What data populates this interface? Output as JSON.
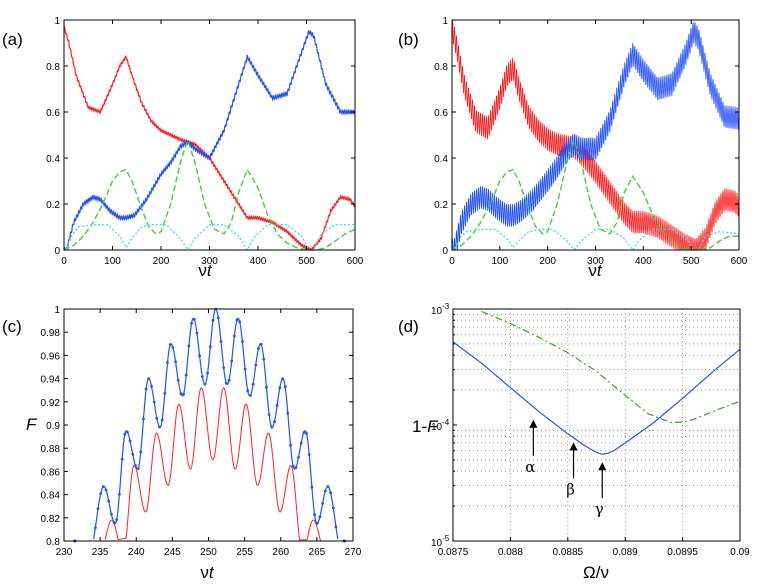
{
  "chart_data": [
    {
      "panel": "(a)",
      "type": "line",
      "xlabel_prefix": "ν",
      "xlabel_var": "t",
      "xlim": [
        0,
        600
      ],
      "ylim": [
        0,
        1
      ],
      "xticks": [
        "0",
        "100",
        "200",
        "300",
        "400",
        "500",
        "600"
      ],
      "yticks": [
        "0",
        "0.2",
        "0.4",
        "0.6",
        "0.8",
        "1"
      ],
      "series": [
        {
          "color": "#ff2020",
          "style": "solid",
          "oscillation": 0.006,
          "x": [
            0,
            10,
            25,
            50,
            75,
            100,
            115,
            128,
            140,
            160,
            180,
            200,
            220,
            240,
            255,
            270,
            300,
            330,
            360,
            378,
            400,
            430,
            460,
            490,
            510,
            530,
            550,
            570,
            590,
            600
          ],
          "y": [
            0.97,
            0.9,
            0.76,
            0.62,
            0.6,
            0.72,
            0.8,
            0.84,
            0.76,
            0.64,
            0.56,
            0.52,
            0.5,
            0.48,
            0.47,
            0.46,
            0.4,
            0.3,
            0.2,
            0.14,
            0.14,
            0.12,
            0.08,
            0.02,
            0.0,
            0.05,
            0.17,
            0.23,
            0.22,
            0.19
          ]
        },
        {
          "color": "#2050ff",
          "style": "solid",
          "oscillation": 0.008,
          "x": [
            0,
            5,
            20,
            40,
            60,
            75,
            95,
            115,
            128,
            145,
            170,
            200,
            220,
            240,
            255,
            270,
            300,
            330,
            360,
            378,
            400,
            430,
            460,
            490,
            505,
            515,
            540,
            570,
            600
          ],
          "y": [
            0.0,
            0.0,
            0.12,
            0.2,
            0.23,
            0.22,
            0.17,
            0.14,
            0.14,
            0.15,
            0.22,
            0.33,
            0.38,
            0.45,
            0.47,
            0.44,
            0.4,
            0.52,
            0.72,
            0.84,
            0.76,
            0.66,
            0.68,
            0.86,
            0.95,
            0.93,
            0.72,
            0.6,
            0.6
          ]
        },
        {
          "color": "#40d030",
          "style": "dash",
          "oscillation": 0,
          "x": [
            0,
            20,
            40,
            60,
            80,
            100,
            115,
            128,
            140,
            160,
            175,
            190,
            200,
            220,
            240,
            255,
            270,
            290,
            310,
            330,
            345,
            360,
            378,
            400,
            420,
            440,
            460,
            480,
            500,
            510,
            520,
            540,
            560,
            580,
            600
          ],
          "y": [
            0.0,
            0.02,
            0.06,
            0.12,
            0.2,
            0.3,
            0.34,
            0.35,
            0.3,
            0.18,
            0.1,
            0.07,
            0.08,
            0.2,
            0.38,
            0.48,
            0.38,
            0.2,
            0.09,
            0.07,
            0.12,
            0.25,
            0.35,
            0.27,
            0.15,
            0.07,
            0.03,
            0.01,
            0.0,
            0.0,
            0.0,
            0.01,
            0.04,
            0.07,
            0.09
          ]
        },
        {
          "color": "#40e0e0",
          "style": "dot",
          "oscillation": 0,
          "x": [
            0,
            5,
            15,
            30,
            60,
            90,
            115,
            128,
            140,
            160,
            180,
            210,
            240,
            255,
            270,
            300,
            330,
            360,
            378,
            390,
            420,
            460,
            490,
            505,
            510,
            515,
            530,
            560,
            600
          ],
          "y": [
            0.0,
            0.0,
            0.06,
            0.1,
            0.11,
            0.11,
            0.06,
            0.01,
            0.05,
            0.1,
            0.11,
            0.11,
            0.05,
            0.0,
            0.05,
            0.11,
            0.11,
            0.06,
            0.0,
            0.05,
            0.11,
            0.11,
            0.06,
            0.0,
            0.0,
            0.0,
            0.07,
            0.11,
            0.11
          ]
        }
      ]
    },
    {
      "panel": "(b)",
      "type": "line",
      "xlabel_prefix": "ν",
      "xlabel_var": "t",
      "xlim": [
        0,
        600
      ],
      "ylim": [
        0,
        1
      ],
      "xticks": [
        "0",
        "100",
        "200",
        "300",
        "400",
        "500",
        "600"
      ],
      "yticks": [
        "0",
        "0.2",
        "0.4",
        "0.6",
        "0.8",
        "1"
      ],
      "series": [
        {
          "color": "#ff2020",
          "style": "solid",
          "oscillation": 0.05,
          "x": [
            0,
            10,
            25,
            50,
            75,
            100,
            115,
            128,
            140,
            160,
            180,
            200,
            220,
            240,
            255,
            270,
            300,
            330,
            360,
            378,
            400,
            430,
            460,
            490,
            510,
            530,
            550,
            570,
            590,
            600
          ],
          "y": [
            0.97,
            0.88,
            0.72,
            0.56,
            0.53,
            0.66,
            0.76,
            0.79,
            0.7,
            0.58,
            0.52,
            0.48,
            0.46,
            0.45,
            0.45,
            0.42,
            0.34,
            0.25,
            0.16,
            0.12,
            0.12,
            0.1,
            0.06,
            0.02,
            0.0,
            0.05,
            0.16,
            0.22,
            0.21,
            0.19
          ]
        },
        {
          "color": "#2050ff",
          "style": "solid",
          "oscillation": 0.05,
          "x": [
            0,
            5,
            20,
            40,
            60,
            75,
            95,
            115,
            128,
            145,
            170,
            200,
            220,
            240,
            255,
            270,
            300,
            330,
            360,
            378,
            400,
            430,
            460,
            490,
            505,
            515,
            540,
            570,
            600
          ],
          "y": [
            0.0,
            0.0,
            0.12,
            0.2,
            0.23,
            0.22,
            0.18,
            0.15,
            0.15,
            0.17,
            0.22,
            0.3,
            0.36,
            0.43,
            0.46,
            0.44,
            0.44,
            0.56,
            0.76,
            0.85,
            0.78,
            0.7,
            0.72,
            0.86,
            0.95,
            0.92,
            0.72,
            0.58,
            0.57
          ]
        },
        {
          "color": "#40d030",
          "style": "dash",
          "oscillation": 0,
          "x": [
            0,
            20,
            40,
            60,
            80,
            100,
            115,
            128,
            140,
            160,
            175,
            190,
            200,
            220,
            240,
            255,
            270,
            290,
            310,
            330,
            345,
            360,
            378,
            400,
            420,
            440,
            460,
            480,
            500,
            510,
            520,
            540,
            560,
            580,
            600
          ],
          "y": [
            0.0,
            0.02,
            0.06,
            0.12,
            0.2,
            0.3,
            0.34,
            0.35,
            0.3,
            0.18,
            0.1,
            0.07,
            0.08,
            0.2,
            0.38,
            0.48,
            0.38,
            0.2,
            0.09,
            0.07,
            0.12,
            0.25,
            0.32,
            0.25,
            0.15,
            0.08,
            0.04,
            0.01,
            0.0,
            0.0,
            0.0,
            0.01,
            0.04,
            0.06,
            0.06
          ]
        },
        {
          "color": "#40e0e0",
          "style": "dot",
          "oscillation": 0,
          "x": [
            0,
            5,
            15,
            30,
            60,
            90,
            115,
            128,
            140,
            160,
            180,
            210,
            240,
            255,
            270,
            300,
            330,
            360,
            378,
            390,
            420,
            460,
            490,
            505,
            510,
            515,
            530,
            560,
            600
          ],
          "y": [
            0.0,
            0.0,
            0.05,
            0.08,
            0.09,
            0.09,
            0.05,
            0.01,
            0.04,
            0.08,
            0.09,
            0.09,
            0.04,
            0.0,
            0.04,
            0.09,
            0.09,
            0.05,
            0.0,
            0.04,
            0.09,
            0.09,
            0.05,
            0.0,
            0.0,
            0.0,
            0.06,
            0.08,
            0.07
          ]
        }
      ]
    },
    {
      "panel": "(c)",
      "type": "line",
      "xlabel_prefix": "ν",
      "xlabel_var": "t",
      "ylabel": "F",
      "xlim": [
        230,
        270
      ],
      "ylim": [
        0.8,
        1
      ],
      "xticks": [
        "230",
        "235",
        "240",
        "245",
        "250",
        "255",
        "260",
        "265",
        "270"
      ],
      "yticks": [
        "0.8",
        "0.82",
        "0.84",
        "0.86",
        "0.88",
        "0.9",
        "0.92",
        "0.94",
        "0.96",
        "0.98",
        "1"
      ],
      "blue_peaks": [
        [
          235.5,
          0.847
        ],
        [
          238.6,
          0.895
        ],
        [
          241.7,
          0.94
        ],
        [
          244.8,
          0.97
        ],
        [
          247.9,
          0.992
        ],
        [
          251.0,
          1.0
        ],
        [
          254.1,
          0.992
        ],
        [
          257.2,
          0.97
        ],
        [
          260.3,
          0.94
        ],
        [
          263.4,
          0.895
        ],
        [
          266.5,
          0.847
        ]
      ],
      "blue_valleys": [
        [
          237.1,
          0.815
        ],
        [
          240.2,
          0.862
        ],
        [
          243.3,
          0.898
        ],
        [
          246.4,
          0.925
        ],
        [
          249.5,
          0.935
        ],
        [
          252.6,
          0.935
        ],
        [
          255.7,
          0.925
        ],
        [
          258.8,
          0.898
        ],
        [
          261.9,
          0.862
        ],
        [
          265.0,
          0.815
        ]
      ],
      "red_peaks": [
        [
          236.6,
          0.818
        ],
        [
          239.7,
          0.865
        ],
        [
          242.8,
          0.893
        ],
        [
          245.9,
          0.918
        ],
        [
          249.0,
          0.932
        ],
        [
          252.1,
          0.932
        ],
        [
          255.2,
          0.918
        ],
        [
          258.3,
          0.893
        ],
        [
          261.4,
          0.865
        ],
        [
          264.5,
          0.818
        ]
      ],
      "red_valleys": [
        [
          238.2,
          0.79
        ],
        [
          241.3,
          0.825
        ],
        [
          244.4,
          0.848
        ],
        [
          247.5,
          0.862
        ],
        [
          250.6,
          0.87
        ],
        [
          253.7,
          0.862
        ],
        [
          256.8,
          0.848
        ],
        [
          259.9,
          0.825
        ],
        [
          263.0,
          0.79
        ]
      ],
      "series": [
        {
          "color": "#2050ff",
          "style": "solid-markers"
        },
        {
          "color": "#ff2020",
          "style": "solid"
        }
      ]
    },
    {
      "panel": "(d)",
      "type": "line",
      "scale_y": "log",
      "xlabel": "Ω/ν",
      "ylabel_prefix": "1-",
      "ylabel_var": "F",
      "xlim": [
        0.0875,
        0.09
      ],
      "ylim": [
        1e-05,
        0.001
      ],
      "xticks": [
        "0.0875",
        "0.088",
        "0.0885",
        "0.089",
        "0.0895",
        "0.09"
      ],
      "yticks": [
        {
          "base": "10",
          "exp": "-5",
          "value": 1e-05
        },
        {
          "base": "10",
          "exp": "-4",
          "value": 0.0001
        },
        {
          "base": "10",
          "exp": "-3",
          "value": 0.001
        }
      ],
      "grid": "on",
      "series": [
        {
          "color": "#2050ff",
          "style": "solid",
          "x": [
            0.0875,
            0.08775,
            0.088,
            0.08825,
            0.0885,
            0.08865,
            0.08875,
            0.0888,
            0.08885,
            0.0889,
            0.089,
            0.08925,
            0.0895,
            0.08975,
            0.09
          ],
          "y": [
            0.00052,
            0.00034,
            0.00021,
            0.00013,
            8.4e-05,
            6.6e-05,
            5.8e-05,
            5.6e-05,
            5.7e-05,
            6e-05,
            7e-05,
            0.000105,
            0.00017,
            0.00028,
            0.00045
          ]
        },
        {
          "color": "#40a020",
          "style": "dashdot",
          "x": [
            0.08775,
            0.088,
            0.08825,
            0.0885,
            0.08875,
            0.089,
            0.0892,
            0.0894,
            0.0895,
            0.0896,
            0.0898,
            0.09
          ],
          "y": [
            0.00095,
            0.00075,
            0.00057,
            0.00042,
            0.00029,
            0.00018,
            0.000125,
            0.000105,
            0.000106,
            0.000112,
            0.000135,
            0.00016
          ]
        }
      ],
      "annotations": [
        {
          "label": "α",
          "x": 0.0882,
          "y": 0.00013
        },
        {
          "label": "β",
          "x": 0.08855,
          "y": 8.3e-05
        },
        {
          "label": "γ",
          "x": 0.0888,
          "y": 5.6e-05
        }
      ]
    }
  ]
}
